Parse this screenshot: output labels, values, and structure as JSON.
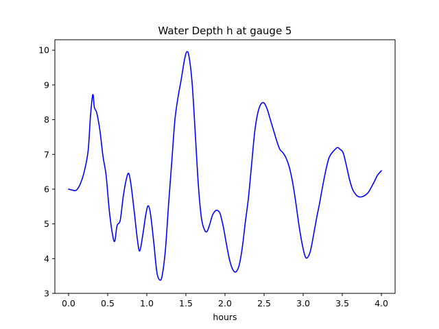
{
  "chart_data": {
    "type": "line",
    "title": "Water Depth h at gauge 5",
    "xlabel": "hours",
    "ylabel": "",
    "xlim": [
      -0.175,
      4.175
    ],
    "ylim": [
      3.0,
      10.3
    ],
    "xticks": [
      0.0,
      0.5,
      1.0,
      1.5,
      2.0,
      2.5,
      3.0,
      3.5,
      4.0
    ],
    "xtick_labels": [
      "0.0",
      "0.5",
      "1.0",
      "1.5",
      "2.0",
      "2.5",
      "3.0",
      "3.5",
      "4.0"
    ],
    "yticks": [
      3,
      4,
      5,
      6,
      7,
      8,
      9,
      10
    ],
    "ytick_labels": [
      "3",
      "4",
      "5",
      "6",
      "7",
      "8",
      "9",
      "10"
    ],
    "grid": false,
    "series": [
      {
        "name": "",
        "color": "#0000ff",
        "x": [
          0.0,
          0.05,
          0.1,
          0.15,
          0.2,
          0.25,
          0.28,
          0.31,
          0.33,
          0.36,
          0.4,
          0.44,
          0.48,
          0.52,
          0.56,
          0.59,
          0.62,
          0.66,
          0.7,
          0.74,
          0.77,
          0.8,
          0.84,
          0.88,
          0.91,
          0.95,
          0.99,
          1.02,
          1.05,
          1.09,
          1.13,
          1.17,
          1.2,
          1.24,
          1.28,
          1.32,
          1.36,
          1.4,
          1.44,
          1.48,
          1.51,
          1.54,
          1.58,
          1.62,
          1.66,
          1.7,
          1.74,
          1.77,
          1.8,
          1.84,
          1.88,
          1.91,
          1.94,
          1.98,
          2.02,
          2.06,
          2.1,
          2.14,
          2.18,
          2.22,
          2.26,
          2.3,
          2.34,
          2.38,
          2.42,
          2.46,
          2.5,
          2.54,
          2.58,
          2.62,
          2.66,
          2.7,
          2.74,
          2.78,
          2.82,
          2.86,
          2.9,
          2.94,
          2.98,
          3.02,
          3.05,
          3.09,
          3.13,
          3.17,
          3.21,
          3.25,
          3.29,
          3.33,
          3.37,
          3.41,
          3.44,
          3.47,
          3.51,
          3.55,
          3.59,
          3.63,
          3.67,
          3.71,
          3.75,
          3.79,
          3.83,
          3.87,
          3.91,
          3.95,
          4.0
        ],
        "y": [
          6.0,
          5.97,
          5.97,
          6.15,
          6.5,
          7.1,
          8.1,
          8.72,
          8.35,
          8.2,
          7.7,
          6.95,
          6.4,
          5.4,
          4.72,
          4.5,
          4.95,
          5.1,
          5.8,
          6.3,
          6.45,
          6.1,
          5.35,
          4.55,
          4.22,
          4.7,
          5.3,
          5.52,
          5.25,
          4.45,
          3.6,
          3.38,
          3.55,
          4.3,
          5.6,
          6.8,
          8.0,
          8.65,
          9.15,
          9.7,
          9.95,
          9.82,
          9.05,
          7.6,
          6.1,
          5.15,
          4.82,
          4.78,
          4.95,
          5.25,
          5.38,
          5.38,
          5.28,
          4.9,
          4.4,
          3.95,
          3.68,
          3.62,
          3.8,
          4.3,
          5.05,
          5.75,
          6.7,
          7.65,
          8.2,
          8.45,
          8.48,
          8.3,
          8.0,
          7.7,
          7.4,
          7.15,
          7.05,
          6.9,
          6.65,
          6.25,
          5.7,
          5.05,
          4.5,
          4.1,
          4.02,
          4.2,
          4.65,
          5.15,
          5.6,
          6.1,
          6.55,
          6.9,
          7.05,
          7.15,
          7.2,
          7.15,
          7.05,
          6.7,
          6.3,
          6.0,
          5.85,
          5.78,
          5.78,
          5.82,
          5.9,
          6.05,
          6.22,
          6.4,
          6.53
        ]
      }
    ]
  }
}
